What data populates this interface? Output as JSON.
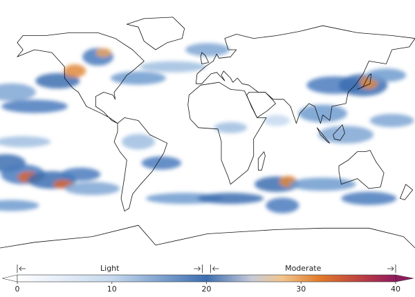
{
  "colorbar": {
    "lim": [
      0,
      40
    ],
    "ticks": [
      0,
      10,
      20,
      30,
      40
    ],
    "categories": [
      {
        "label": "Light",
        "range": [
          0,
          20
        ]
      },
      {
        "label": "Moderate",
        "range": [
          20,
          40
        ]
      }
    ]
  }
}
